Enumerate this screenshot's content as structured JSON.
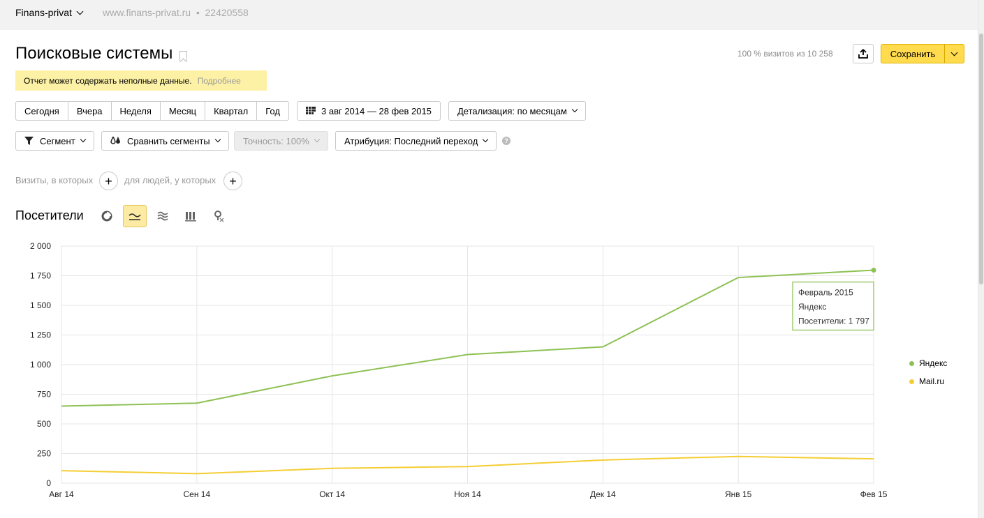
{
  "topbar": {
    "counter_name": "Finans-privat",
    "counter_site": "www.finans-privat.ru  •  22420558"
  },
  "header": {
    "title": "Поисковые системы",
    "visits_info": "100 % визитов из 10 258",
    "save_label": "Сохранить"
  },
  "warning": {
    "text": "Отчет может содержать неполные данные.",
    "more_link": "Подробнее"
  },
  "period": {
    "options": [
      "Сегодня",
      "Вчера",
      "Неделя",
      "Месяц",
      "Квартал",
      "Год"
    ],
    "date_range": "3 авг 2014 — 28 фев 2015",
    "detail": "Детализация: по месяцам"
  },
  "filters": {
    "segment": "Сегмент",
    "compare": "Сравнить сегменты",
    "accuracy": "Точность: 100%",
    "attribution": "Атрибуция: Последний переход",
    "help": "?"
  },
  "conditions": {
    "visits": "Визиты, в которых",
    "people": "для людей, у которых"
  },
  "chart_section": {
    "title": "Посетители",
    "icons": [
      "pie-chart-icon",
      "line-chart-icon",
      "area-chart-icon",
      "bar-chart-icon",
      "map-icon"
    ]
  },
  "tooltip": {
    "line1": "Февраль 2015",
    "line2": "Яндекс",
    "line3": "Посетители: 1 797"
  },
  "colors": {
    "yandex": "#8ec154",
    "mailru": "#f5cd33",
    "accent": "#ffdb4d",
    "grid": "#e6e6e6"
  },
  "chart_data": {
    "type": "line",
    "categories": [
      "Авг 14",
      "Сен 14",
      "Окт 14",
      "Ноя 14",
      "Дек 14",
      "Янв 15",
      "Фев 15"
    ],
    "series": [
      {
        "name": "Яндекс",
        "color": "#8ec154",
        "values": [
          650,
          675,
          905,
          1085,
          1150,
          1735,
          1797
        ]
      },
      {
        "name": "Mail.ru",
        "color": "#f5cd33",
        "values": [
          105,
          80,
          125,
          140,
          195,
          225,
          205
        ]
      }
    ],
    "ylim": [
      0,
      2000
    ],
    "yticks": [
      0,
      250,
      500,
      750,
      1000,
      1250,
      1500,
      1750,
      2000
    ],
    "ytick_labels": [
      "0",
      "250",
      "500",
      "750",
      "1 000",
      "1 250",
      "1 500",
      "1 750",
      "2 000"
    ],
    "grid": true,
    "legend": "right"
  }
}
